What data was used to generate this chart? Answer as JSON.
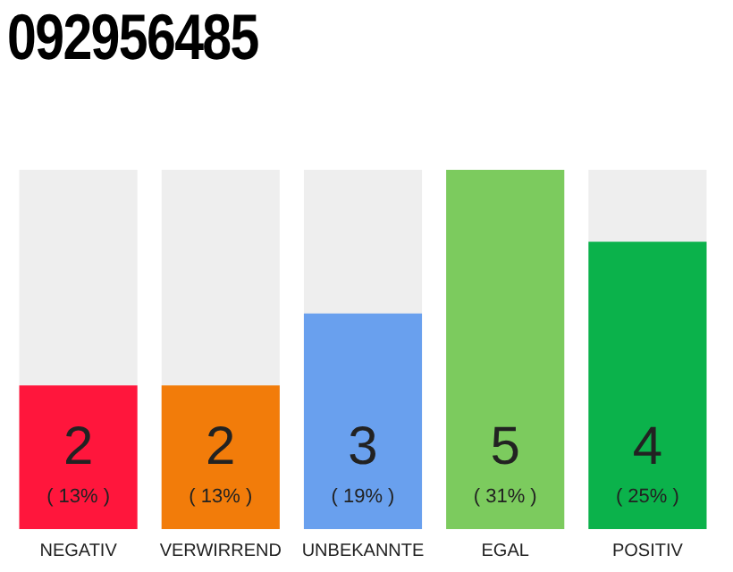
{
  "chart_data": {
    "type": "bar",
    "title": "092956485",
    "categories": [
      "NEGATIV",
      "VERWIRREND",
      "UNBEKANNTE",
      "EGAL",
      "POSITIV"
    ],
    "values": [
      2,
      2,
      3,
      5,
      4
    ],
    "colors": [
      "#ff163c",
      "#f27c0a",
      "#69a0ee",
      "#7ccb5e",
      "#0bb24b"
    ],
    "value_labels": [
      "2",
      "2",
      "3",
      "5",
      "4"
    ],
    "annotations": [
      "( 13% )",
      "( 13% )",
      "( 19% )",
      "( 31% )",
      "( 25% )"
    ],
    "tick_labels": "x",
    "grid": false,
    "legend": false
  }
}
